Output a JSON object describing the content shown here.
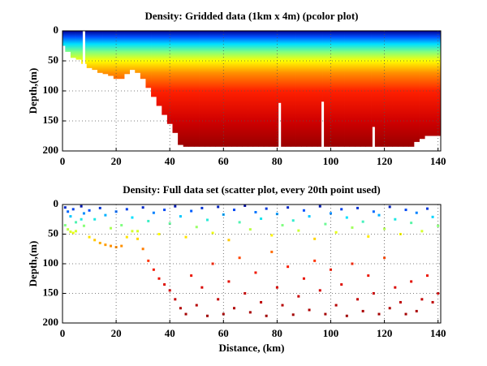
{
  "chart_data": [
    {
      "type": "heatmap",
      "title": "Density: Gridded data (1km x 4m) (pcolor plot)",
      "ylabel": "Depth,(m)",
      "xlim": [
        0,
        141
      ],
      "ylim": [
        0,
        200
      ],
      "y_inverted": true,
      "xticks": [
        0,
        20,
        40,
        60,
        80,
        100,
        120,
        140
      ],
      "yticks": [
        0,
        50,
        100,
        150,
        200
      ],
      "grid": true,
      "x": [
        0,
        2,
        4,
        6,
        8,
        10,
        12,
        14,
        16,
        18,
        20,
        22,
        24,
        26,
        28,
        30,
        32,
        34,
        36,
        38,
        40,
        42,
        44,
        46,
        48,
        50,
        52,
        54,
        56,
        58,
        60,
        62,
        64,
        66,
        68,
        70,
        72,
        74,
        76,
        78,
        80,
        82,
        84,
        86,
        88,
        90,
        92,
        94,
        96,
        98,
        100,
        102,
        104,
        106,
        108,
        110,
        112,
        114,
        116,
        118,
        120,
        122,
        124,
        126,
        128,
        130,
        132,
        134,
        136,
        138,
        140
      ],
      "bottom": [
        25,
        35,
        45,
        48,
        55,
        62,
        65,
        70,
        72,
        75,
        80,
        80,
        72,
        65,
        70,
        80,
        95,
        110,
        125,
        140,
        155,
        170,
        190,
        193,
        193,
        193,
        193,
        193,
        193,
        193,
        193,
        193,
        193,
        193,
        193,
        193,
        193,
        193,
        193,
        193,
        193,
        193,
        193,
        193,
        193,
        193,
        193,
        193,
        193,
        193,
        193,
        193,
        193,
        193,
        193,
        193,
        193,
        193,
        193,
        193,
        193,
        193,
        193,
        193,
        193,
        193,
        185,
        180,
        175,
        175,
        175
      ],
      "gap_x": [
        8,
        81,
        97,
        116
      ],
      "gap_top": [
        0,
        120,
        118,
        160
      ],
      "color_stops": [
        {
          "value": 0,
          "color": "#00008f"
        },
        {
          "value": 10,
          "color": "#0050ff"
        },
        {
          "value": 22,
          "color": "#00e0ff"
        },
        {
          "value": 35,
          "color": "#80ff80"
        },
        {
          "value": 50,
          "color": "#ffff00"
        },
        {
          "value": 70,
          "color": "#ff9000"
        },
        {
          "value": 100,
          "color": "#ff2000"
        },
        {
          "value": 150,
          "color": "#d00000"
        },
        {
          "value": 200,
          "color": "#900000"
        }
      ]
    },
    {
      "type": "scatter",
      "title": "Density: Full data set (scatter plot, every 20th point used)",
      "ylabel": "Depth,(m)",
      "xlabel": "Distance, (km)",
      "xlim": [
        0,
        141
      ],
      "ylim": [
        0,
        200
      ],
      "y_inverted": true,
      "xticks": [
        0,
        20,
        40,
        60,
        80,
        100,
        120,
        140
      ],
      "yticks": [
        0,
        50,
        100,
        150,
        200
      ],
      "grid": true,
      "x": [
        1,
        2,
        3,
        4,
        5,
        7,
        8,
        10,
        12,
        14,
        16,
        18,
        20,
        22,
        24,
        26,
        28,
        30,
        32,
        34,
        36,
        38,
        40,
        42,
        44,
        46,
        48,
        50,
        52,
        54,
        56,
        58,
        60,
        62,
        64,
        66,
        68,
        70,
        72,
        74,
        76,
        78,
        80,
        82,
        84,
        86,
        88,
        90,
        92,
        94,
        96,
        98,
        100,
        102,
        104,
        106,
        108,
        110,
        112,
        114,
        116,
        118,
        120,
        122,
        124,
        126,
        128,
        130,
        132,
        134,
        136,
        138,
        140,
        1,
        2,
        3,
        4,
        5,
        7,
        8,
        10,
        12,
        14,
        16,
        18,
        20,
        22,
        24,
        26,
        28,
        30,
        32,
        34,
        36,
        38,
        40,
        42,
        44,
        46,
        48,
        50,
        52,
        54,
        56,
        58,
        60,
        62,
        64,
        66,
        68,
        70,
        72,
        74,
        76,
        78,
        80,
        82,
        84,
        86,
        88,
        90,
        92,
        94,
        96,
        98,
        100,
        102,
        104,
        106,
        108,
        110,
        112,
        114,
        116,
        118,
        120,
        122,
        124,
        126,
        128,
        130,
        132,
        134,
        136,
        138,
        140
      ],
      "y": [
        5,
        12,
        20,
        8,
        30,
        3,
        15,
        10,
        25,
        6,
        18,
        40,
        12,
        35,
        8,
        22,
        45,
        5,
        28,
        14,
        50,
        9,
        32,
        3,
        20,
        55,
        11,
        38,
        6,
        26,
        48,
        4,
        17,
        60,
        9,
        30,
        2,
        42,
        13,
        24,
        7,
        52,
        16,
        35,
        5,
        27,
        44,
        10,
        20,
        58,
        3,
        33,
        15,
        47,
        8,
        22,
        39,
        6,
        29,
        54,
        12,
        18,
        41,
        4,
        25,
        50,
        9,
        31,
        14,
        45,
        7,
        21,
        36,
        35,
        42,
        46,
        48,
        45,
        25,
        36,
        55,
        60,
        65,
        68,
        70,
        72,
        70,
        55,
        45,
        58,
        75,
        95,
        110,
        125,
        135,
        145,
        160,
        175,
        185,
        120,
        170,
        140,
        188,
        100,
        160,
        185,
        130,
        175,
        90,
        150,
        182,
        115,
        165,
        188,
        80,
        140,
        170,
        105,
        186,
        155,
        125,
        178,
        95,
        145,
        185,
        110,
        170,
        135,
        188,
        100,
        160,
        180,
        120,
        150,
        185,
        90,
        175,
        140,
        165,
        185,
        130,
        180,
        160,
        120,
        165,
        150
      ]
    }
  ]
}
